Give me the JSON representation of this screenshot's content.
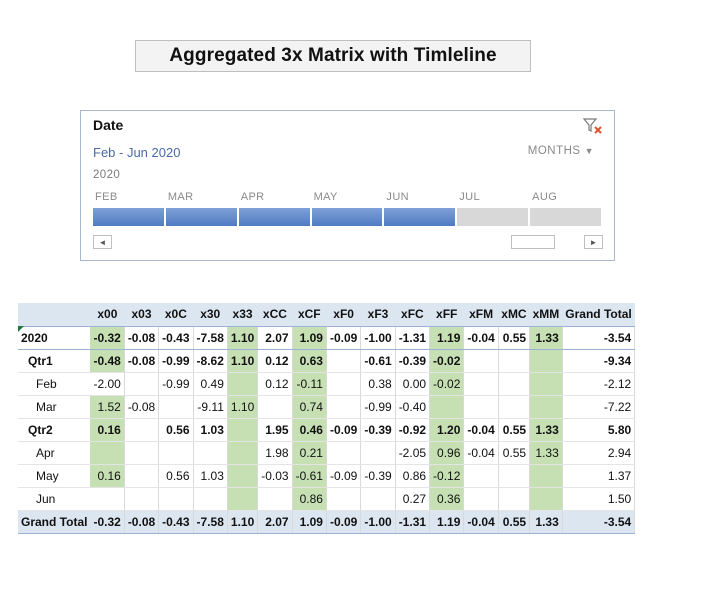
{
  "title": "Aggregated 3x Matrix with Timleline",
  "timeline": {
    "header": "Date",
    "clear_filter_icon": "clear-filter-icon",
    "selected_range": "Feb - Jun 2020",
    "time_level": "MONTHS",
    "year": "2020",
    "months": [
      "FEB",
      "MAR",
      "APR",
      "MAY",
      "JUN",
      "JUL",
      "AUG"
    ],
    "selected_months": [
      "FEB",
      "MAR",
      "APR",
      "MAY",
      "JUN"
    ],
    "selected_color": "#5b86c8",
    "unselected_color": "#d8d8d8",
    "scroll_left": "◄",
    "scroll_right": "►"
  },
  "pivot": {
    "columns": [
      "",
      "x00",
      "x03",
      "x0C",
      "x30",
      "x33",
      "xCC",
      "xCF",
      "xF0",
      "xF3",
      "xFC",
      "xFF",
      "xFM",
      "xMC",
      "xMM",
      "Grand Total"
    ],
    "highlight_color": "#c6e0b4",
    "header_color": "#dce6f1",
    "rows": [
      {
        "label": "2020",
        "level": 0,
        "bold": true,
        "cells": [
          "-0.32",
          "-0.08",
          "-0.43",
          "-7.58",
          "1.10",
          "2.07",
          "1.09",
          "-0.09",
          "-1.00",
          "-1.31",
          "1.19",
          "-0.04",
          "0.55",
          "1.33",
          "-3.54"
        ],
        "green": [
          1,
          5,
          7,
          11,
          14
        ]
      },
      {
        "label": "Qtr1",
        "level": 1,
        "bold": true,
        "cells": [
          "-0.48",
          "-0.08",
          "-0.99",
          "-8.62",
          "1.10",
          "0.12",
          "0.63",
          "",
          "-0.61",
          "-0.39",
          "-0.02",
          "",
          "",
          "",
          "-9.34"
        ],
        "green": [
          1,
          5,
          7,
          11,
          14
        ]
      },
      {
        "label": "Feb",
        "level": 2,
        "bold": false,
        "cells": [
          "-2.00",
          "",
          "-0.99",
          "0.49",
          "",
          "0.12",
          "-0.11",
          "",
          "0.38",
          "0.00",
          "-0.02",
          "",
          "",
          "",
          "-2.12"
        ],
        "green": [
          5,
          7,
          11,
          14
        ]
      },
      {
        "label": "Mar",
        "level": 2,
        "bold": false,
        "cells": [
          "1.52",
          "-0.08",
          "",
          "-9.11",
          "1.10",
          "",
          "0.74",
          "",
          "-0.99",
          "-0.40",
          "",
          "",
          "",
          "",
          "-7.22"
        ],
        "green": [
          1,
          5,
          7,
          11,
          14
        ]
      },
      {
        "label": "Qtr2",
        "level": 1,
        "bold": true,
        "cells": [
          "0.16",
          "",
          "0.56",
          "1.03",
          "",
          "1.95",
          "0.46",
          "-0.09",
          "-0.39",
          "-0.92",
          "1.20",
          "-0.04",
          "0.55",
          "1.33",
          "5.80"
        ],
        "green": [
          1,
          5,
          7,
          11,
          14
        ]
      },
      {
        "label": "Apr",
        "level": 2,
        "bold": false,
        "cells": [
          "",
          "",
          "",
          "",
          "",
          "1.98",
          "0.21",
          "",
          "",
          "-2.05",
          "0.96",
          "-0.04",
          "0.55",
          "1.33",
          "2.94"
        ],
        "green": [
          1,
          5,
          7,
          11,
          14
        ]
      },
      {
        "label": "May",
        "level": 2,
        "bold": false,
        "cells": [
          "0.16",
          "",
          "0.56",
          "1.03",
          "",
          "-0.03",
          "-0.61",
          "-0.09",
          "-0.39",
          "0.86",
          "-0.12",
          "",
          "",
          "",
          "1.37"
        ],
        "green": [
          1,
          5,
          7,
          11,
          14
        ]
      },
      {
        "label": "Jun",
        "level": 2,
        "bold": false,
        "cells": [
          "",
          "",
          "",
          "",
          "",
          "",
          "0.86",
          "",
          "",
          "0.27",
          "0.36",
          "",
          "",
          "",
          "1.50"
        ],
        "green": [
          5,
          7,
          11,
          14
        ]
      }
    ],
    "grand_total": {
      "label": "Grand Total",
      "cells": [
        "-0.32",
        "-0.08",
        "-0.43",
        "-7.58",
        "1.10",
        "2.07",
        "1.09",
        "-0.09",
        "-1.00",
        "-1.31",
        "1.19",
        "-0.04",
        "0.55",
        "1.33",
        "-3.54"
      ]
    }
  }
}
